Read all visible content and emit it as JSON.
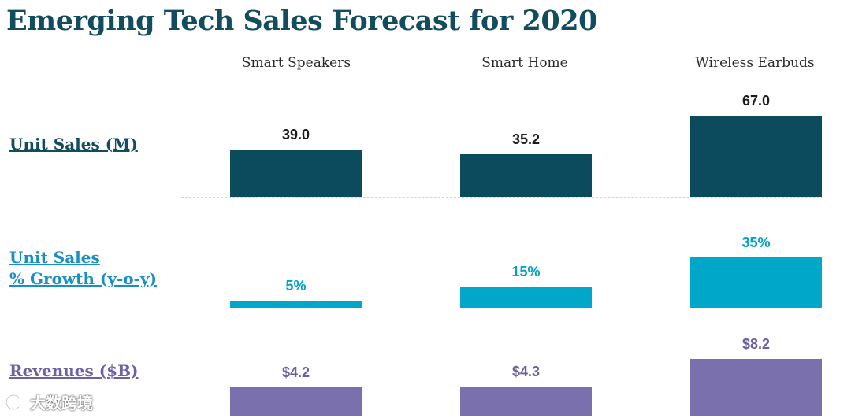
{
  "title": "Emerging Tech Sales Forecast for 2020",
  "colors": {
    "title": "#124c5f",
    "unit_sales": "#0c4a5d",
    "growth": "#00a7c9",
    "revenues": "#7a70ad"
  },
  "row_labels": {
    "unit_sales": "Unit Sales (M)",
    "growth_line1": "Unit Sales",
    "growth_line2": "% Growth (y-o-y)",
    "revenues": "Revenues ($B)"
  },
  "watermark": "大数跨境",
  "chart_data": {
    "type": "bar",
    "title": "Emerging Tech Sales Forecast for 2020",
    "categories": [
      "Smart Speakers",
      "Smart Home",
      "Wireless Earbuds"
    ],
    "series": [
      {
        "name": "Unit Sales (M)",
        "values": [
          39.0,
          35.2,
          67.0
        ],
        "labels": [
          "39.0",
          "35.2",
          "67.0"
        ]
      },
      {
        "name": "Unit Sales % Growth (y-o-y)",
        "values": [
          5,
          15,
          35
        ],
        "labels": [
          "5%",
          "15%",
          "35%"
        ]
      },
      {
        "name": "Revenues ($B)",
        "values": [
          4.2,
          4.3,
          8.2
        ],
        "labels": [
          "$4.2",
          "$4.3",
          "$8.2"
        ]
      }
    ]
  }
}
